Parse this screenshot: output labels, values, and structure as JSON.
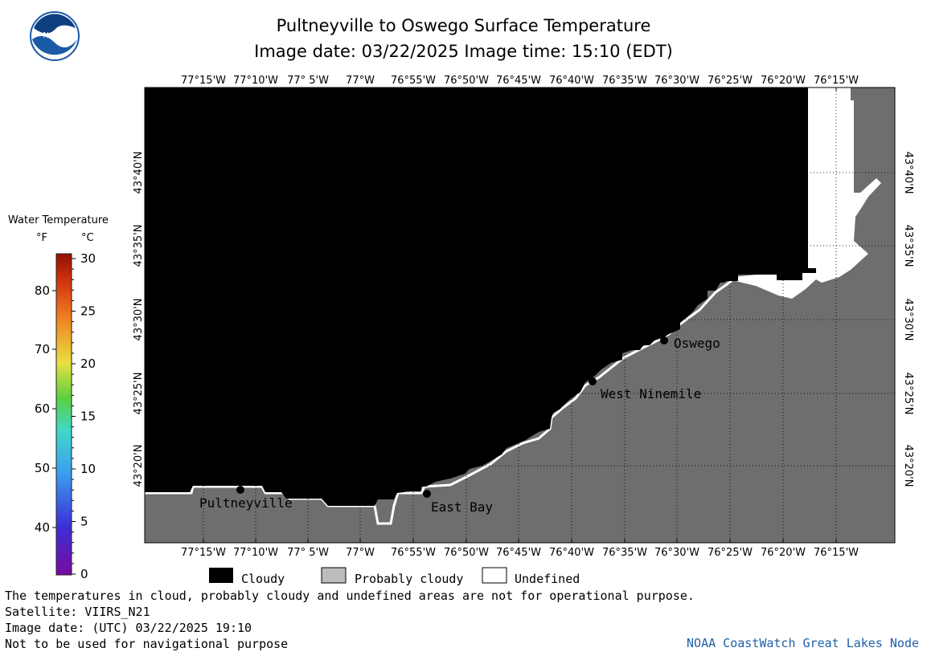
{
  "title": {
    "line1": "Pultneyville to Oswego Surface Temperature",
    "line2": "Image date: 03/22/2025     Image time: 15:10 (EDT)"
  },
  "logo": {
    "text": "NOAA",
    "color": "#1a5aa6"
  },
  "colorbar": {
    "title": "Water Temperature",
    "unit_f": "°F",
    "unit_c": "°C",
    "f_ticks": [
      "80",
      "70",
      "60",
      "50",
      "40"
    ],
    "c_ticks": [
      "30",
      "25",
      "20",
      "15",
      "10",
      "5",
      "0"
    ]
  },
  "map": {
    "lon_labels": [
      "77°15'W",
      "77°10'W",
      "77° 5'W",
      "77°W",
      "76°55'W",
      "76°50'W",
      "76°45'W",
      "76°40'W",
      "76°35'W",
      "76°30'W",
      "76°25'W",
      "76°20'W",
      "76°15'W"
    ],
    "lat_labels": [
      "43°40'N",
      "43°35'N",
      "43°30'N",
      "43°25'N",
      "43°20'N"
    ],
    "places": [
      "Pultneyville",
      "East Bay",
      "West Ninemile",
      "Oswego"
    ],
    "colors": {
      "cloudy": "#000000",
      "probably_cloudy": "#6e6e6e",
      "undefined": "#ffffff"
    }
  },
  "legend": {
    "cloudy": "Cloudy",
    "probably_cloudy": "Probably cloudy",
    "undefined": "Undefined"
  },
  "footer": {
    "line1": "The temperatures in cloud, probably cloudy and undefined areas are not for operational purpose.",
    "line2": "Satellite: VIIRS_N21",
    "line3": "Image date: (UTC) 03/22/2025  19:10",
    "line4": "Not to be used for navigational purpose",
    "credit": "NOAA CoastWatch Great Lakes Node"
  }
}
